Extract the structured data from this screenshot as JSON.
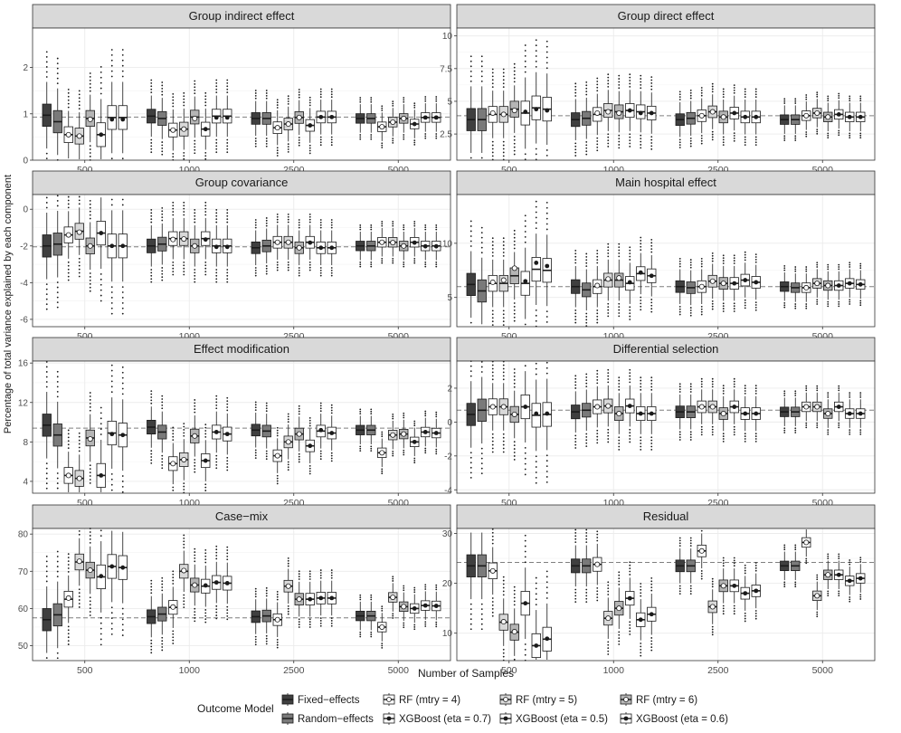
{
  "figure": {
    "ylabel": "Percentage of total variance explained by each component",
    "xlabel": "Number of Samples"
  },
  "legend": {
    "title": "Outcome Model",
    "entries": [
      {
        "label": "Fixed−effects",
        "fill": "#3f3f3f",
        "marker": "median-line"
      },
      {
        "label": "Random−effects",
        "fill": "#7a7a7a",
        "marker": "median-line"
      },
      {
        "label": "RF (mtry = 4)",
        "fill": "#ffffff",
        "marker": "open-circle"
      },
      {
        "label": "XGBoost (eta = 0.7)",
        "fill": "#ffffff",
        "marker": "filled-circle"
      },
      {
        "label": "RF (mtry = 5)",
        "fill": "#d9d9d9",
        "marker": "open-circle"
      },
      {
        "label": "XGBoost (eta = 0.5)",
        "fill": "#ffffff",
        "marker": "filled-circle"
      },
      {
        "label": "RF (mtry = 6)",
        "fill": "#b5b5b5",
        "marker": "open-circle"
      },
      {
        "label": "XGBoost (eta = 0.6)",
        "fill": "#ffffff",
        "marker": "filled-circle"
      }
    ]
  },
  "chart_data": [
    {
      "type": "box",
      "title": "Group indirect effect",
      "categories": [
        "500",
        "1000",
        "2500",
        "5000"
      ],
      "yticks": [
        0,
        1,
        2
      ],
      "ylim": [
        0,
        2.85
      ],
      "ref": 0.93,
      "medians": [
        [
          0.97,
          0.83,
          0.55,
          0.55,
          0.52,
          0.92,
          0.9,
          0.92
        ],
        [
          0.95,
          0.9,
          0.65,
          0.67,
          0.67,
          0.95,
          0.93,
          0.95
        ],
        [
          0.9,
          0.9,
          0.7,
          0.75,
          0.78,
          0.93,
          0.92,
          0.93
        ],
        [
          0.9,
          0.9,
          0.72,
          0.78,
          0.82,
          0.92,
          0.9,
          0.92
        ]
      ],
      "means": [
        [
          1.0,
          0.85,
          0.55,
          0.55,
          0.52,
          0.88,
          0.88,
          0.88
        ],
        [
          0.97,
          0.9,
          0.65,
          0.67,
          0.67,
          0.92,
          0.9,
          0.92
        ],
        [
          0.92,
          0.9,
          0.7,
          0.75,
          0.78,
          0.93,
          0.92,
          0.93
        ],
        [
          0.9,
          0.9,
          0.72,
          0.78,
          0.82,
          0.92,
          0.9,
          0.92
        ]
      ]
    },
    {
      "type": "box",
      "title": "Group direct effect",
      "categories": [
        "500",
        "1000",
        "2500",
        "5000"
      ],
      "yticks": [
        2.5,
        5.0,
        7.5,
        10.0
      ],
      "ylim": [
        0.5,
        10.6
      ],
      "ref": 3.9,
      "medians": [
        [
          3.6,
          3.6,
          4.0,
          4.1,
          4.0,
          4.5,
          4.4,
          4.4
        ],
        [
          3.6,
          3.7,
          4.0,
          4.3,
          4.3,
          4.2,
          4.2,
          4.1
        ],
        [
          3.6,
          3.7,
          3.9,
          4.1,
          4.2,
          3.8,
          3.8,
          3.8
        ],
        [
          3.6,
          3.6,
          3.9,
          4.0,
          4.1,
          3.8,
          3.8,
          3.8
        ]
      ],
      "means": [
        [
          3.6,
          3.6,
          4.1,
          4.2,
          4.0,
          4.4,
          4.3,
          4.3
        ],
        [
          3.6,
          3.6,
          4.1,
          4.3,
          4.2,
          4.1,
          4.1,
          4.1
        ],
        [
          3.6,
          3.6,
          3.9,
          4.1,
          4.2,
          3.8,
          3.8,
          3.8
        ],
        [
          3.6,
          3.6,
          3.9,
          4.0,
          4.1,
          3.8,
          3.8,
          3.8
        ]
      ]
    },
    {
      "type": "box",
      "title": "Group covariance",
      "categories": [
        "500",
        "1000",
        "2500",
        "5000"
      ],
      "yticks": [
        -6,
        -4,
        -2,
        0
      ],
      "ylim": [
        -6.4,
        0.8
      ],
      "ref": -2.05,
      "medians": [
        [
          -2.0,
          -1.9,
          -1.4,
          -1.3,
          -1.2,
          -2.0,
          -2.0,
          -2.0
        ],
        [
          -2.0,
          -1.9,
          -1.6,
          -1.6,
          -1.6,
          -2.0,
          -2.0,
          -2.0
        ],
        [
          -2.1,
          -2.0,
          -1.8,
          -1.8,
          -1.8,
          -2.1,
          -2.1,
          -2.1
        ],
        [
          -2.0,
          -2.0,
          -1.8,
          -1.8,
          -1.8,
          -2.0,
          -2.0,
          -2.0
        ]
      ],
      "means": [
        [
          -2.0,
          -1.9,
          -1.4,
          -1.3,
          -1.25,
          -2.0,
          -2.0,
          -2.0
        ],
        [
          -2.0,
          -1.9,
          -1.65,
          -1.65,
          -1.62,
          -2.05,
          -2.0,
          -2.05
        ],
        [
          -2.1,
          -2.0,
          -1.8,
          -1.82,
          -1.8,
          -2.1,
          -2.1,
          -2.1
        ],
        [
          -2.0,
          -2.0,
          -1.8,
          -1.82,
          -1.82,
          -2.02,
          -2.0,
          -2.02
        ]
      ]
    },
    {
      "type": "box",
      "title": "Main hospital effect",
      "categories": [
        "500",
        "1000",
        "2500",
        "5000"
      ],
      "yticks": [
        5,
        10
      ],
      "ylim": [
        2.3,
        14.5
      ],
      "ref": 6.0,
      "medians": [
        [
          6.2,
          5.6,
          6.3,
          6.3,
          6.3,
          7.6,
          7.0,
          7.5
        ],
        [
          6.0,
          5.7,
          6.0,
          6.3,
          6.6,
          7.2,
          6.6,
          7.0
        ],
        [
          6.0,
          5.9,
          6.0,
          6.3,
          6.5,
          6.6,
          6.3,
          6.4
        ],
        [
          6.0,
          5.9,
          5.9,
          6.1,
          6.3,
          6.3,
          6.1,
          6.2
        ]
      ],
      "means": [
        [
          6.3,
          5.7,
          6.4,
          6.5,
          6.6,
          8.2,
          7.7,
          7.9
        ],
        [
          6.0,
          5.7,
          6.1,
          6.4,
          6.7,
          7.3,
          6.8,
          7.0
        ],
        [
          6.0,
          5.9,
          6.0,
          6.3,
          6.5,
          6.6,
          6.3,
          6.4
        ],
        [
          6.0,
          5.9,
          5.9,
          6.1,
          6.3,
          6.3,
          6.1,
          6.2
        ]
      ]
    },
    {
      "type": "box",
      "title": "Effect modification",
      "categories": [
        "500",
        "1000",
        "2500",
        "5000"
      ],
      "yticks": [
        4,
        8,
        12,
        16
      ],
      "ylim": [
        2.8,
        16.2
      ],
      "ref": 9.4,
      "medians": [
        [
          9.7,
          8.7,
          4.6,
          4.6,
          4.3,
          8.9,
          8.4,
          8.7
        ],
        [
          9.5,
          9.0,
          5.8,
          6.1,
          6.2,
          9.0,
          8.6,
          8.8
        ],
        [
          9.2,
          9.1,
          6.6,
          7.6,
          8.0,
          9.1,
          8.8,
          8.9
        ],
        [
          9.2,
          9.2,
          6.9,
          8.0,
          8.7,
          9.0,
          8.8,
          8.9
        ]
      ],
      "means": [
        [
          9.8,
          8.7,
          4.6,
          4.6,
          4.3,
          8.8,
          8.3,
          8.7
        ],
        [
          9.5,
          9.0,
          5.8,
          6.1,
          6.2,
          9.0,
          8.6,
          8.8
        ],
        [
          9.3,
          9.1,
          6.6,
          7.6,
          8.0,
          9.2,
          8.8,
          8.9
        ],
        [
          9.3,
          9.2,
          6.9,
          8.0,
          8.7,
          9.0,
          8.8,
          8.9
        ]
      ]
    },
    {
      "type": "box",
      "title": "Differential selection",
      "categories": [
        "500",
        "1000",
        "2500",
        "5000"
      ],
      "yticks": [
        -4,
        -2,
        0,
        2
      ],
      "ylim": [
        -4.2,
        3.6
      ],
      "ref": 0.7,
      "medians": [
        [
          0.45,
          0.7,
          0.9,
          0.9,
          0.9,
          0.4,
          0.45,
          0.45
        ],
        [
          0.6,
          0.7,
          0.9,
          0.95,
          0.95,
          0.5,
          0.5,
          0.5
        ],
        [
          0.6,
          0.6,
          0.9,
          0.9,
          0.9,
          0.5,
          0.5,
          0.5
        ],
        [
          0.6,
          0.6,
          0.9,
          0.9,
          0.9,
          0.5,
          0.5,
          0.5
        ]
      ],
      "means": [
        [
          0.5,
          0.7,
          0.9,
          0.9,
          0.9,
          0.5,
          0.45,
          0.5
        ],
        [
          0.6,
          0.7,
          0.9,
          0.95,
          0.95,
          0.5,
          0.5,
          0.5
        ],
        [
          0.6,
          0.6,
          0.9,
          0.9,
          0.9,
          0.5,
          0.5,
          0.5
        ],
        [
          0.6,
          0.6,
          0.9,
          0.9,
          0.9,
          0.5,
          0.5,
          0.5
        ]
      ]
    },
    {
      "type": "box",
      "title": "Case−mix",
      "categories": [
        "500",
        "1000",
        "2500",
        "5000"
      ],
      "yticks": [
        50,
        60,
        70,
        80
      ],
      "ylim": [
        46,
        81.5
      ],
      "ref": 57.5,
      "medians": [
        [
          57.0,
          58.3,
          62.5,
          68.5,
          72.5,
          71.3,
          70.3,
          71.0
        ],
        [
          57.8,
          58.5,
          60.3,
          66.0,
          70.0,
          67.0,
          66.3,
          66.8
        ],
        [
          57.8,
          58.0,
          57.0,
          62.5,
          66.0,
          62.8,
          62.5,
          62.8
        ],
        [
          58.0,
          58.0,
          55.0,
          60.0,
          63.0,
          60.8,
          60.5,
          60.7
        ]
      ],
      "means": [
        [
          57.3,
          58.5,
          62.8,
          68.7,
          72.7,
          71.3,
          70.3,
          71.0
        ],
        [
          57.8,
          58.6,
          60.4,
          66.2,
          70.2,
          67.0,
          66.3,
          66.8
        ],
        [
          57.8,
          58.0,
          57.0,
          62.5,
          66.0,
          62.8,
          62.5,
          62.8
        ],
        [
          58.0,
          58.0,
          55.0,
          60.0,
          63.0,
          60.8,
          60.5,
          60.7
        ]
      ]
    },
    {
      "type": "box",
      "title": "Residual",
      "categories": [
        "500",
        "1000",
        "2500",
        "5000"
      ],
      "yticks": [
        10,
        20,
        30
      ],
      "ylim": [
        4.5,
        31
      ],
      "ref": 24.2,
      "medians": [
        [
          23.5,
          23.5,
          22.5,
          16.0,
          12.2,
          7.5,
          10.2,
          8.8
        ],
        [
          23.5,
          23.5,
          23.8,
          17.0,
          13.0,
          12.7,
          15.0,
          13.8
        ],
        [
          23.5,
          23.5,
          26.5,
          19.5,
          15.3,
          18.0,
          19.5,
          18.5
        ],
        [
          23.5,
          23.5,
          28.2,
          21.7,
          17.5,
          20.5,
          21.7,
          21.0
        ]
      ],
      "means": [
        [
          23.5,
          23.5,
          22.5,
          16.0,
          12.3,
          7.5,
          10.3,
          8.9
        ],
        [
          23.5,
          23.5,
          23.8,
          17.0,
          13.0,
          12.7,
          15.0,
          13.8
        ],
        [
          23.5,
          23.5,
          26.5,
          19.5,
          15.3,
          18.0,
          19.5,
          18.5
        ],
        [
          23.5,
          23.5,
          28.2,
          21.7,
          17.5,
          20.5,
          21.7,
          21.0
        ]
      ]
    }
  ]
}
